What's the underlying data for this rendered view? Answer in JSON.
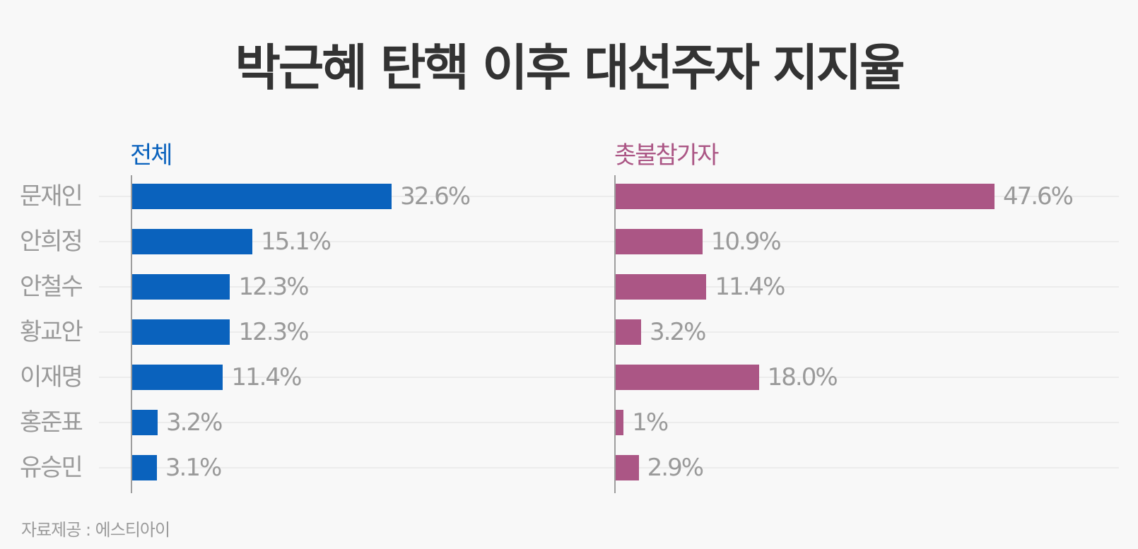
{
  "title": "박근혜 탄핵 이후 대선주자 지지율",
  "source": "자료제공 : 에스티아이",
  "colors": {
    "all": "#0a62bd",
    "candle": "#ab5685",
    "text": "#9a9a9a",
    "title": "#333333"
  },
  "chart_data": {
    "type": "bar",
    "orientation": "horizontal",
    "title": "박근혜 탄핵 이후 대선주자 지지율",
    "categories": [
      "문재인",
      "안희정",
      "안철수",
      "황교안",
      "이재명",
      "홍준표",
      "유승민"
    ],
    "series": [
      {
        "name": "전체",
        "color": "#0a62bd",
        "values": [
          32.6,
          15.1,
          12.3,
          12.3,
          11.4,
          3.2,
          3.1
        ],
        "labels": [
          "32.6%",
          "15.1%",
          "12.3%",
          "12.3%",
          "11.4%",
          "3.2%",
          "3.1%"
        ]
      },
      {
        "name": "촛불참가자",
        "color": "#ab5685",
        "values": [
          47.6,
          10.9,
          11.4,
          3.2,
          18.0,
          1,
          2.9
        ],
        "labels": [
          "47.6%",
          "10.9%",
          "11.4%",
          "3.2%",
          "18.0%",
          "1%",
          "2.9%"
        ]
      }
    ],
    "xlabel": "",
    "ylabel": "",
    "grid": true,
    "legend": "panel titles above each chart",
    "annotations": [
      "자료제공 : 에스티아이"
    ]
  }
}
